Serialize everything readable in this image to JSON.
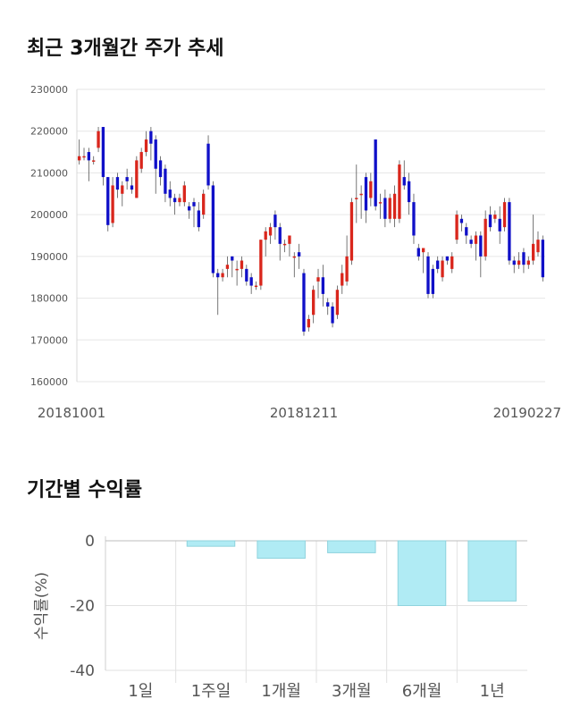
{
  "section1_title": "최근 3개월간 주가 추세",
  "section2_title": "기간별 수익률",
  "chart_data": [
    {
      "type": "candlestick",
      "title": "최근 3개월간 주가 추세",
      "ylim": [
        160000,
        230000
      ],
      "y_ticks": [
        230000,
        220000,
        210000,
        200000,
        190000,
        180000,
        170000,
        160000
      ],
      "x_tick_labels": [
        "20181001",
        "20181211",
        "20190227"
      ],
      "colors": {
        "up": "#d9261c",
        "down": "#1010c8",
        "grid": "#e6e6e6",
        "axis_text": "#555555"
      },
      "candles": [
        [
          213000,
          214000,
          212000,
          218000
        ],
        [
          214000,
          214000,
          213000,
          216000
        ],
        [
          215000,
          213000,
          208000,
          216000
        ],
        [
          213000,
          213000,
          212000,
          214000
        ],
        [
          216000,
          220000,
          215000,
          221000
        ],
        [
          221000,
          209000,
          207000,
          221000
        ],
        [
          209000,
          197500,
          196000,
          209000
        ],
        [
          198000,
          207000,
          197000,
          209000
        ],
        [
          209000,
          206000,
          204000,
          210000
        ],
        [
          205000,
          207000,
          202000,
          208000
        ],
        [
          209000,
          208000,
          206000,
          211000
        ],
        [
          207000,
          206000,
          205000,
          209000
        ],
        [
          204000,
          213000,
          204000,
          214000
        ],
        [
          211000,
          215000,
          210000,
          216000
        ],
        [
          215000,
          218000,
          214000,
          220000
        ],
        [
          220000,
          217000,
          213000,
          221000
        ],
        [
          218000,
          211000,
          205000,
          219000
        ],
        [
          213000,
          209000,
          207000,
          214000
        ],
        [
          211000,
          205000,
          203000,
          212000
        ],
        [
          206000,
          204000,
          202000,
          208000
        ],
        [
          204000,
          203000,
          200000,
          205000
        ],
        [
          203000,
          204000,
          202000,
          205000
        ],
        [
          203000,
          207000,
          202000,
          208000
        ],
        [
          202000,
          201000,
          199000,
          203000
        ],
        [
          203000,
          202000,
          197000,
          204000
        ],
        [
          201000,
          197000,
          196000,
          203000
        ],
        [
          200000,
          205000,
          199000,
          206000
        ],
        [
          217000,
          207000,
          206000,
          219000
        ],
        [
          207000,
          186000,
          185000,
          208000
        ],
        [
          186000,
          185000,
          176000,
          187000
        ],
        [
          185000,
          186000,
          184000,
          187000
        ],
        [
          187000,
          188000,
          185000,
          190000
        ],
        [
          190000,
          189000,
          185000,
          190000
        ],
        [
          187000,
          187000,
          183000,
          189000
        ],
        [
          187000,
          189000,
          185000,
          190000
        ],
        [
          187000,
          184000,
          183000,
          188000
        ],
        [
          185000,
          183000,
          181000,
          186000
        ],
        [
          183000,
          183000,
          182000,
          184000
        ],
        [
          183000,
          194000,
          182000,
          194000
        ],
        [
          194000,
          196000,
          190000,
          197000
        ],
        [
          195000,
          197000,
          193000,
          198000
        ],
        [
          200000,
          197000,
          194000,
          201000
        ],
        [
          197000,
          193000,
          189000,
          198000
        ],
        [
          193000,
          193000,
          191000,
          194000
        ],
        [
          193000,
          195000,
          190000,
          195000
        ],
        [
          190000,
          190000,
          185000,
          191000
        ],
        [
          191000,
          190000,
          187000,
          193000
        ],
        [
          186000,
          172000,
          171000,
          187000
        ],
        [
          173000,
          175000,
          172000,
          176000
        ],
        [
          176000,
          182000,
          174000,
          183000
        ],
        [
          184000,
          185000,
          180000,
          187000
        ],
        [
          185000,
          181000,
          178000,
          188000
        ],
        [
          179000,
          178000,
          176000,
          180000
        ],
        [
          178000,
          174000,
          173000,
          179000
        ],
        [
          176000,
          182000,
          175000,
          183000
        ],
        [
          183000,
          186000,
          181000,
          188000
        ],
        [
          184000,
          190000,
          183000,
          195000
        ],
        [
          189000,
          203000,
          188000,
          204000
        ],
        [
          204000,
          204000,
          198000,
          212000
        ],
        [
          205000,
          205000,
          199000,
          207000
        ],
        [
          209000,
          201000,
          198000,
          210000
        ],
        [
          204000,
          208000,
          202000,
          210000
        ],
        [
          218000,
          202000,
          201000,
          218000
        ],
        [
          203000,
          203000,
          199000,
          205000
        ],
        [
          204000,
          199000,
          197000,
          206000
        ],
        [
          199000,
          204000,
          198000,
          205000
        ],
        [
          199000,
          205000,
          197000,
          207000
        ],
        [
          199000,
          212000,
          198000,
          213000
        ],
        [
          209000,
          207000,
          206000,
          213000
        ],
        [
          208000,
          203000,
          200000,
          210000
        ],
        [
          203000,
          195000,
          193000,
          205000
        ],
        [
          192000,
          190000,
          189000,
          193000
        ],
        [
          191000,
          192000,
          186000,
          192000
        ],
        [
          190000,
          181000,
          180000,
          191000
        ],
        [
          187000,
          181000,
          180000,
          188000
        ],
        [
          189000,
          187000,
          186000,
          190000
        ],
        [
          185000,
          189000,
          184000,
          190000
        ],
        [
          190000,
          189000,
          188000,
          190000
        ],
        [
          187000,
          190000,
          186000,
          191000
        ],
        [
          194000,
          200000,
          193000,
          201000
        ],
        [
          199000,
          198000,
          196000,
          200000
        ],
        [
          197000,
          195000,
          193000,
          198000
        ],
        [
          194000,
          193000,
          192000,
          195000
        ],
        [
          193000,
          195000,
          189000,
          196000
        ],
        [
          195000,
          190000,
          185000,
          196000
        ],
        [
          190000,
          199000,
          189000,
          201000
        ],
        [
          200000,
          197000,
          196000,
          202000
        ],
        [
          199000,
          200000,
          198000,
          201000
        ],
        [
          199000,
          196000,
          193000,
          202000
        ],
        [
          197000,
          203000,
          196000,
          204000
        ],
        [
          203000,
          189000,
          188000,
          204000
        ],
        [
          189000,
          188000,
          186000,
          190000
        ],
        [
          188000,
          189000,
          187000,
          191000
        ],
        [
          191000,
          188000,
          186000,
          192000
        ],
        [
          188000,
          189000,
          187000,
          190000
        ],
        [
          189000,
          193000,
          188000,
          200000
        ],
        [
          191000,
          194000,
          190000,
          196000
        ],
        [
          194000,
          185000,
          184000,
          195000
        ]
      ]
    },
    {
      "type": "bar",
      "title": "기간별 수익률",
      "ylabel": "수익률(%)",
      "categories": [
        "1일",
        "1주일",
        "1개월",
        "3개월",
        "6개월",
        "1년"
      ],
      "values": [
        0.0,
        -1.7,
        -5.4,
        -3.7,
        -20.0,
        -18.6
      ],
      "ylim": [
        -40,
        0
      ],
      "y_ticks": [
        0,
        -20,
        -40
      ],
      "colors": {
        "bar_fill": "#b0ebf4",
        "bar_stroke": "#8fd3dd",
        "axis_text": "#555555",
        "grid": "#e2e2e2"
      }
    }
  ]
}
